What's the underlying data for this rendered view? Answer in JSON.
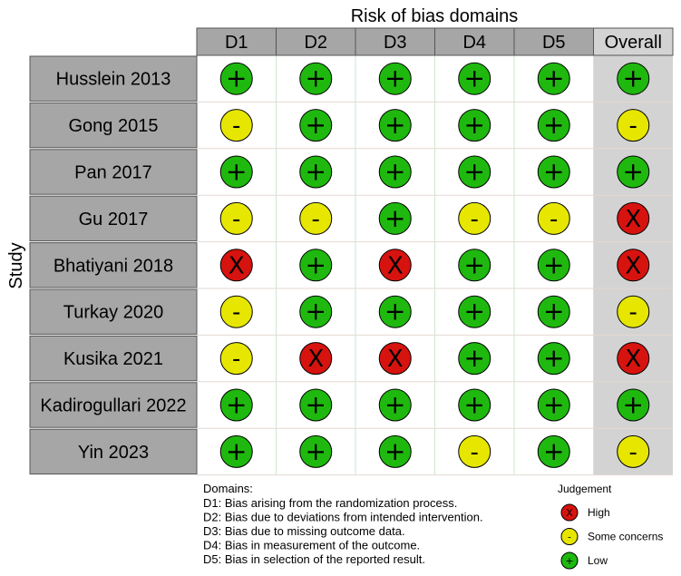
{
  "chart_data": {
    "type": "table",
    "title": "Risk of bias domains",
    "ylabel": "Study",
    "columns": [
      "D1",
      "D2",
      "D3",
      "D4",
      "D5",
      "Overall"
    ],
    "studies": [
      {
        "name": "Husslein 2013",
        "judgements": [
          "low",
          "low",
          "low",
          "low",
          "low",
          "low"
        ]
      },
      {
        "name": "Gong 2015",
        "judgements": [
          "some",
          "low",
          "low",
          "low",
          "low",
          "some"
        ]
      },
      {
        "name": "Pan 2017",
        "judgements": [
          "low",
          "low",
          "low",
          "low",
          "low",
          "low"
        ]
      },
      {
        "name": "Gu 2017",
        "judgements": [
          "some",
          "some",
          "low",
          "some",
          "some",
          "high"
        ]
      },
      {
        "name": "Bhatiyani 2018",
        "judgements": [
          "high",
          "low",
          "high",
          "low",
          "low",
          "high"
        ]
      },
      {
        "name": "Turkay 2020",
        "judgements": [
          "some",
          "low",
          "low",
          "low",
          "low",
          "some"
        ]
      },
      {
        "name": "Kusika 2021",
        "judgements": [
          "some",
          "high",
          "high",
          "low",
          "low",
          "high"
        ]
      },
      {
        "name": "Kadirogullari 2022",
        "judgements": [
          "low",
          "low",
          "low",
          "low",
          "low",
          "low"
        ]
      },
      {
        "name": "Yin 2023",
        "judgements": [
          "low",
          "low",
          "low",
          "some",
          "low",
          "some"
        ]
      }
    ],
    "judgement_symbols": {
      "low": "+",
      "some": "-",
      "high": "X"
    },
    "judgement_colors": {
      "low": "#1fb80f",
      "some": "#e6e600",
      "high": "#d7130f"
    },
    "domains_note": {
      "heading": "Domains:",
      "lines": [
        "D1: Bias arising from the randomization process.",
        "D2: Bias due to deviations from intended intervention.",
        "D3: Bias due to missing outcome data.",
        "D4: Bias in measurement of the outcome.",
        "D5: Bias in selection of the reported result."
      ]
    },
    "legend": {
      "title": "Judgement",
      "items": [
        {
          "key": "high",
          "symbol": "X",
          "label": "High"
        },
        {
          "key": "some",
          "symbol": "-",
          "label": "Some concerns"
        },
        {
          "key": "low",
          "symbol": "+",
          "label": "Low"
        }
      ]
    }
  }
}
